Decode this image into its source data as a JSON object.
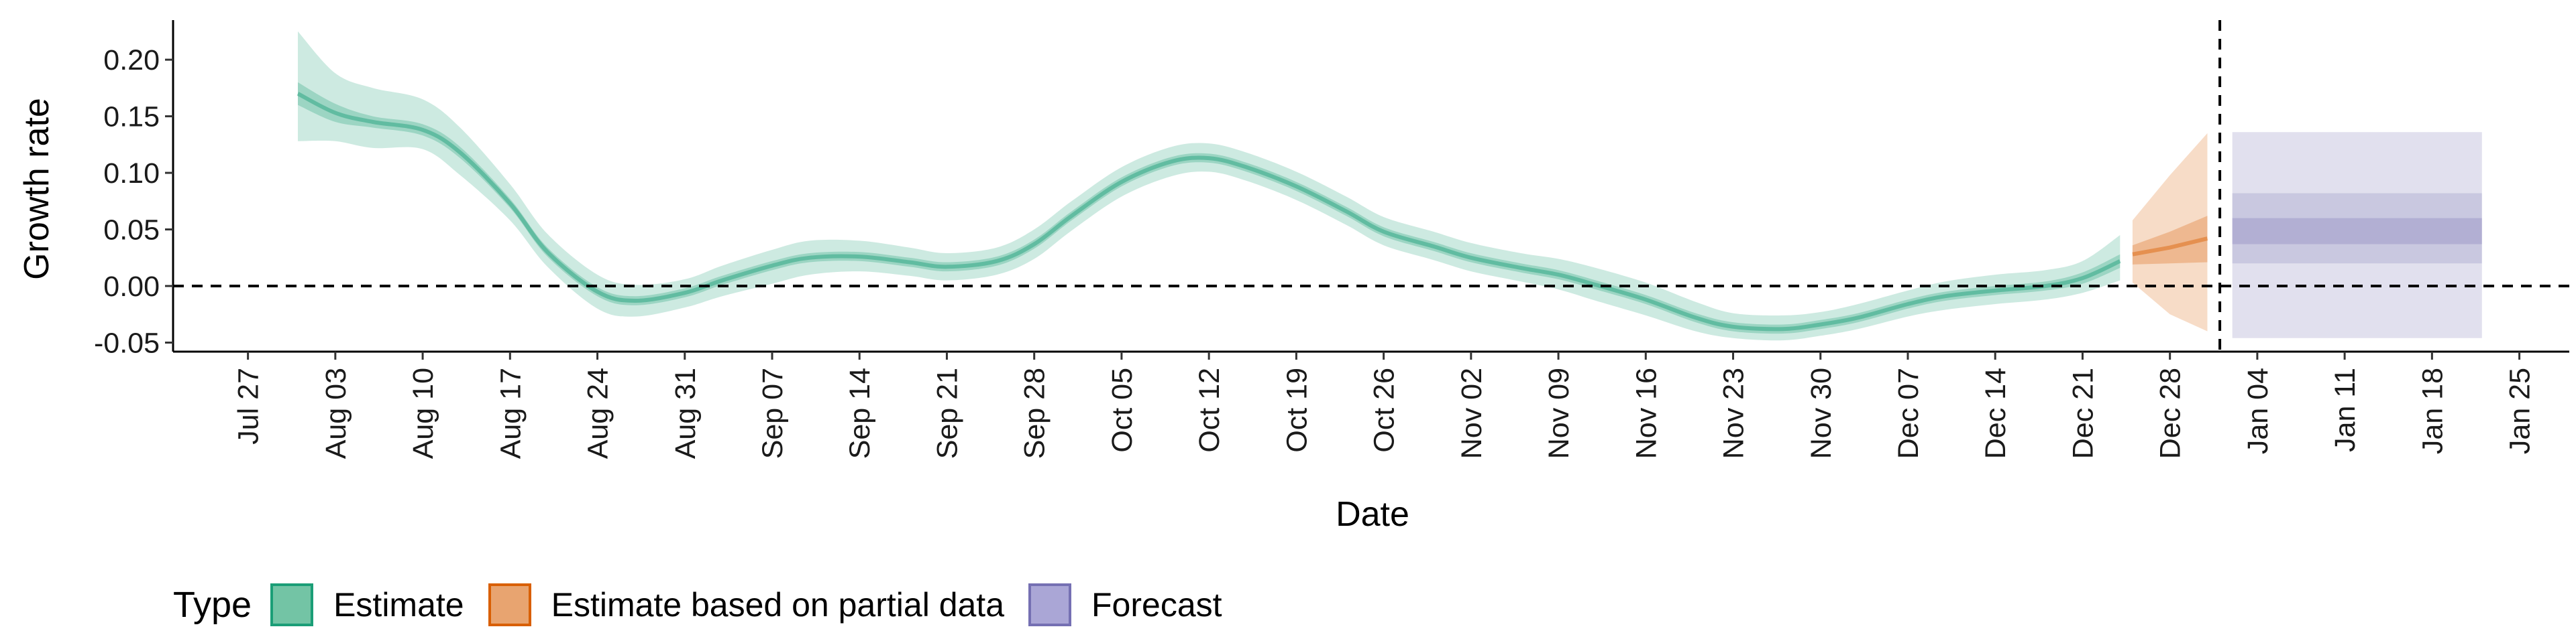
{
  "chart_data": {
    "type": "line",
    "xlabel": "Date",
    "ylabel": "Growth rate",
    "ylim": [
      -0.058,
      0.235
    ],
    "xlim": [
      "2020-07-21",
      "2021-01-29"
    ],
    "y_ticks": [
      "0.20",
      "0.15",
      "0.10",
      "0.05",
      "0.00",
      "-0.05"
    ],
    "y_tick_values": [
      0.2,
      0.15,
      0.1,
      0.05,
      0.0,
      -0.05
    ],
    "x_ticks": [
      "Jul 27",
      "Aug 03",
      "Aug 10",
      "Aug 17",
      "Aug 24",
      "Aug 31",
      "Sep 07",
      "Sep 14",
      "Sep 21",
      "Sep 28",
      "Oct 05",
      "Oct 12",
      "Oct 19",
      "Oct 26",
      "Nov 02",
      "Nov 09",
      "Nov 16",
      "Nov 23",
      "Nov 30",
      "Dec 07",
      "Dec 14",
      "Dec 21",
      "Dec 28",
      "Jan 04",
      "Jan 11",
      "Jan 18",
      "Jan 25"
    ],
    "x_tick_dates": [
      "2020-07-27",
      "2020-08-03",
      "2020-08-10",
      "2020-08-17",
      "2020-08-24",
      "2020-08-31",
      "2020-09-07",
      "2020-09-14",
      "2020-09-21",
      "2020-09-28",
      "2020-10-05",
      "2020-10-12",
      "2020-10-19",
      "2020-10-26",
      "2020-11-02",
      "2020-11-09",
      "2020-11-16",
      "2020-11-23",
      "2020-11-30",
      "2020-12-07",
      "2020-12-14",
      "2020-12-21",
      "2020-12-28",
      "2021-01-04",
      "2021-01-11",
      "2021-01-18",
      "2021-01-25"
    ],
    "hline": 0.0,
    "vline": "2021-01-01",
    "series": [
      {
        "name": "Estimate",
        "color": "#1b9e77",
        "x": [
          "2020-07-31",
          "2020-08-03",
          "2020-08-06",
          "2020-08-10",
          "2020-08-13",
          "2020-08-17",
          "2020-08-20",
          "2020-08-24",
          "2020-08-27",
          "2020-08-31",
          "2020-09-03",
          "2020-09-07",
          "2020-09-10",
          "2020-09-14",
          "2020-09-18",
          "2020-09-21",
          "2020-09-25",
          "2020-09-28",
          "2020-10-01",
          "2020-10-05",
          "2020-10-09",
          "2020-10-12",
          "2020-10-15",
          "2020-10-19",
          "2020-10-23",
          "2020-10-26",
          "2020-10-30",
          "2020-11-02",
          "2020-11-06",
          "2020-11-09",
          "2020-11-12",
          "2020-11-16",
          "2020-11-20",
          "2020-11-23",
          "2020-11-27",
          "2020-11-30",
          "2020-12-03",
          "2020-12-07",
          "2020-12-10",
          "2020-12-14",
          "2020-12-18",
          "2020-12-21",
          "2020-12-24"
        ],
        "median": [
          0.17,
          0.153,
          0.145,
          0.138,
          0.118,
          0.073,
          0.03,
          -0.005,
          -0.013,
          -0.006,
          0.005,
          0.018,
          0.025,
          0.026,
          0.021,
          0.017,
          0.022,
          0.037,
          0.062,
          0.092,
          0.11,
          0.113,
          0.105,
          0.088,
          0.066,
          0.048,
          0.035,
          0.025,
          0.016,
          0.01,
          0.001,
          -0.012,
          -0.028,
          -0.036,
          -0.038,
          -0.034,
          -0.028,
          -0.016,
          -0.009,
          -0.004,
          0.0,
          0.007,
          0.022
        ],
        "lower_50": [
          0.16,
          0.145,
          0.14,
          0.133,
          0.113,
          0.069,
          0.026,
          -0.009,
          -0.017,
          -0.01,
          0.001,
          0.014,
          0.021,
          0.022,
          0.017,
          0.013,
          0.018,
          0.033,
          0.058,
          0.088,
          0.106,
          0.109,
          0.101,
          0.084,
          0.062,
          0.044,
          0.031,
          0.021,
          0.012,
          0.006,
          -0.003,
          -0.016,
          -0.032,
          -0.04,
          -0.042,
          -0.038,
          -0.032,
          -0.02,
          -0.013,
          -0.008,
          -0.004,
          0.002,
          0.016
        ],
        "upper_50": [
          0.18,
          0.161,
          0.15,
          0.143,
          0.123,
          0.077,
          0.034,
          -0.001,
          -0.009,
          -0.002,
          0.009,
          0.022,
          0.029,
          0.03,
          0.025,
          0.021,
          0.026,
          0.041,
          0.066,
          0.096,
          0.114,
          0.117,
          0.109,
          0.092,
          0.07,
          0.052,
          0.039,
          0.029,
          0.02,
          0.014,
          0.005,
          -0.008,
          -0.024,
          -0.032,
          -0.034,
          -0.03,
          -0.024,
          -0.012,
          -0.005,
          0.0,
          0.004,
          0.012,
          0.028
        ],
        "lower_90": [
          0.128,
          0.128,
          0.122,
          0.121,
          0.098,
          0.058,
          0.017,
          -0.02,
          -0.027,
          -0.019,
          -0.009,
          0.002,
          0.01,
          0.013,
          0.009,
          0.005,
          0.01,
          0.024,
          0.049,
          0.079,
          0.097,
          0.101,
          0.093,
          0.076,
          0.054,
          0.036,
          0.023,
          0.013,
          0.004,
          -0.003,
          -0.013,
          -0.026,
          -0.04,
          -0.046,
          -0.048,
          -0.044,
          -0.038,
          -0.027,
          -0.021,
          -0.016,
          -0.012,
          -0.006,
          0.005
        ],
        "upper_90": [
          0.225,
          0.188,
          0.175,
          0.165,
          0.14,
          0.09,
          0.046,
          0.01,
          0.001,
          0.006,
          0.018,
          0.032,
          0.04,
          0.04,
          0.034,
          0.029,
          0.034,
          0.05,
          0.075,
          0.105,
          0.123,
          0.126,
          0.118,
          0.101,
          0.079,
          0.061,
          0.048,
          0.038,
          0.029,
          0.024,
          0.016,
          0.003,
          -0.014,
          -0.024,
          -0.026,
          -0.023,
          -0.016,
          -0.004,
          0.004,
          0.01,
          0.014,
          0.022,
          0.045
        ]
      },
      {
        "name": "Estimate based on partial data",
        "color": "#d95f02",
        "x": [
          "2020-12-25",
          "2020-12-28",
          "2020-12-31"
        ],
        "median": [
          0.028,
          0.034,
          0.042
        ],
        "lower_50": [
          0.019,
          0.02,
          0.021
        ],
        "upper_50": [
          0.036,
          0.048,
          0.062
        ],
        "lower_90": [
          0.003,
          -0.025,
          -0.04
        ],
        "upper_90": [
          0.058,
          0.098,
          0.135
        ]
      },
      {
        "name": "Forecast",
        "color": "#7570b3",
        "x": [
          "2021-01-02",
          "2021-01-22"
        ],
        "median": [
          0.048,
          0.048
        ],
        "lower_50": [
          0.037,
          0.037
        ],
        "upper_50": [
          0.06,
          0.06
        ],
        "lower_70": [
          0.02,
          0.02
        ],
        "upper_70": [
          0.082,
          0.082
        ],
        "lower_90": [
          -0.046,
          -0.046
        ],
        "upper_90": [
          0.136,
          0.136
        ]
      }
    ]
  },
  "legend": {
    "title": "Type",
    "items": [
      {
        "label": "Estimate",
        "fill": "#73c4a5",
        "stroke": "#1b9e77"
      },
      {
        "label": "Estimate based on partial data",
        "fill": "#e8a470",
        "stroke": "#d95f02"
      },
      {
        "label": "Forecast",
        "fill": "#aaa6d6",
        "stroke": "#7570b3"
      }
    ]
  }
}
